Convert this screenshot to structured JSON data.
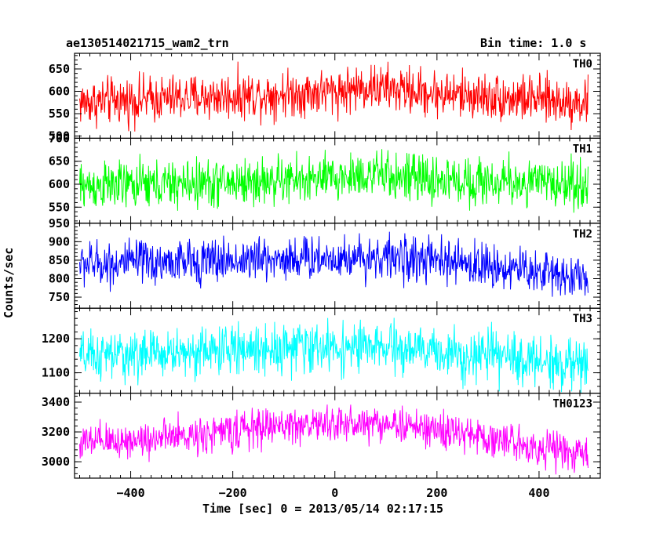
{
  "chart_data": {
    "type": "line",
    "title": "ae130514021715_wam2_trn",
    "bin_time_label": "Bin time: 1.0 s",
    "xlabel": "Time [sec] 0 = 2013/05/14 02:17:15",
    "ylabel": "Counts/sec",
    "xlim": [
      -510,
      520
    ],
    "x_ticks": [
      -400,
      -200,
      0,
      200,
      400
    ],
    "x_tick_labels": [
      "−400",
      "−200",
      "0",
      "200",
      "400"
    ],
    "bin_time_s": 1.0,
    "x_start": -500,
    "x_end": 496,
    "series": [
      {
        "name": "TH0",
        "color": "#ff0000",
        "ylim": [
          495,
          685
        ],
        "y_ticks": [
          500,
          550,
          600,
          650
        ],
        "trend": [
          [
            -500,
            575
          ],
          [
            -300,
            585
          ],
          [
            0,
            600
          ],
          [
            60,
            610
          ],
          [
            200,
            595
          ],
          [
            496,
            575
          ]
        ],
        "noise": 26
      },
      {
        "name": "TH1",
        "color": "#00ff00",
        "ylim": [
          515,
          700
        ],
        "y_ticks": [
          550,
          600,
          650,
          700
        ],
        "trend": [
          [
            -500,
            595
          ],
          [
            -300,
            600
          ],
          [
            0,
            612
          ],
          [
            60,
            622
          ],
          [
            200,
            608
          ],
          [
            496,
            600
          ]
        ],
        "noise": 26
      },
      {
        "name": "TH2",
        "color": "#0000ff",
        "ylim": [
          720,
          950
        ],
        "y_ticks": [
          750,
          800,
          850,
          900,
          950
        ],
        "trend": [
          [
            -500,
            840
          ],
          [
            -300,
            845
          ],
          [
            -100,
            855
          ],
          [
            100,
            858
          ],
          [
            300,
            835
          ],
          [
            496,
            805
          ]
        ],
        "noise": 30
      },
      {
        "name": "TH3",
        "color": "#00ffff",
        "ylim": [
          1040,
          1290
        ],
        "y_ticks": [
          1100,
          1200
        ],
        "trend": [
          [
            -500,
            1145
          ],
          [
            -300,
            1160
          ],
          [
            -100,
            1175
          ],
          [
            100,
            1172
          ],
          [
            300,
            1150
          ],
          [
            496,
            1120
          ]
        ],
        "noise": 36
      },
      {
        "name": "TH0123",
        "color": "#ff00ff",
        "ylim": [
          2890,
          3460
        ],
        "y_ticks": [
          3000,
          3200,
          3400
        ],
        "trend": [
          [
            -500,
            3120
          ],
          [
            -300,
            3170
          ],
          [
            -100,
            3245
          ],
          [
            100,
            3260
          ],
          [
            300,
            3160
          ],
          [
            496,
            3040
          ]
        ],
        "noise": 62
      }
    ]
  }
}
